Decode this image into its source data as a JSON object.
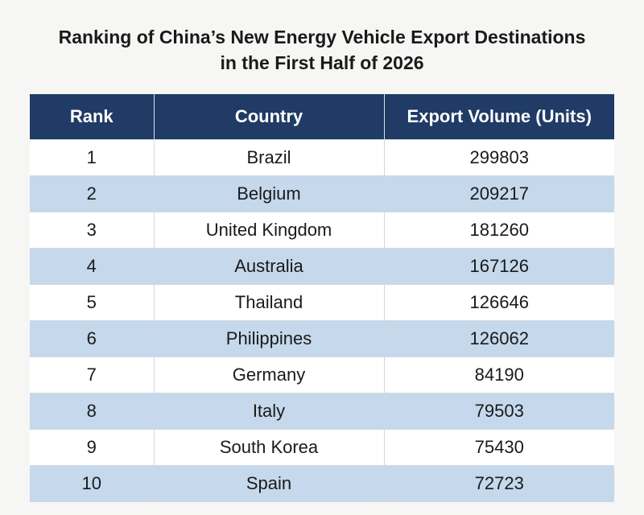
{
  "chart_data": {
    "type": "table",
    "title_lines": [
      "Ranking of China’s New Energy Vehicle Export Destinations",
      "in the First Half of 2026"
    ],
    "columns": [
      "Rank",
      "Country",
      "Export Volume (Units)"
    ],
    "rows": [
      [
        "1",
        "Brazil",
        "299803"
      ],
      [
        "2",
        "Belgium",
        "209217"
      ],
      [
        "3",
        "United Kingdom",
        "181260"
      ],
      [
        "4",
        "Australia",
        "167126"
      ],
      [
        "5",
        "Thailand",
        "126646"
      ],
      [
        "6",
        "Philippines",
        "126062"
      ],
      [
        "7",
        "Germany",
        "84190"
      ],
      [
        "8",
        "Italy",
        "79503"
      ],
      [
        "9",
        "South Korea",
        "75430"
      ],
      [
        "10",
        "Spain",
        "72723"
      ]
    ]
  },
  "colors": {
    "header_bg": "#1f3b66",
    "header_text": "#ffffff",
    "row_alt": "#c5d8ec",
    "row_base": "#ffffff"
  }
}
